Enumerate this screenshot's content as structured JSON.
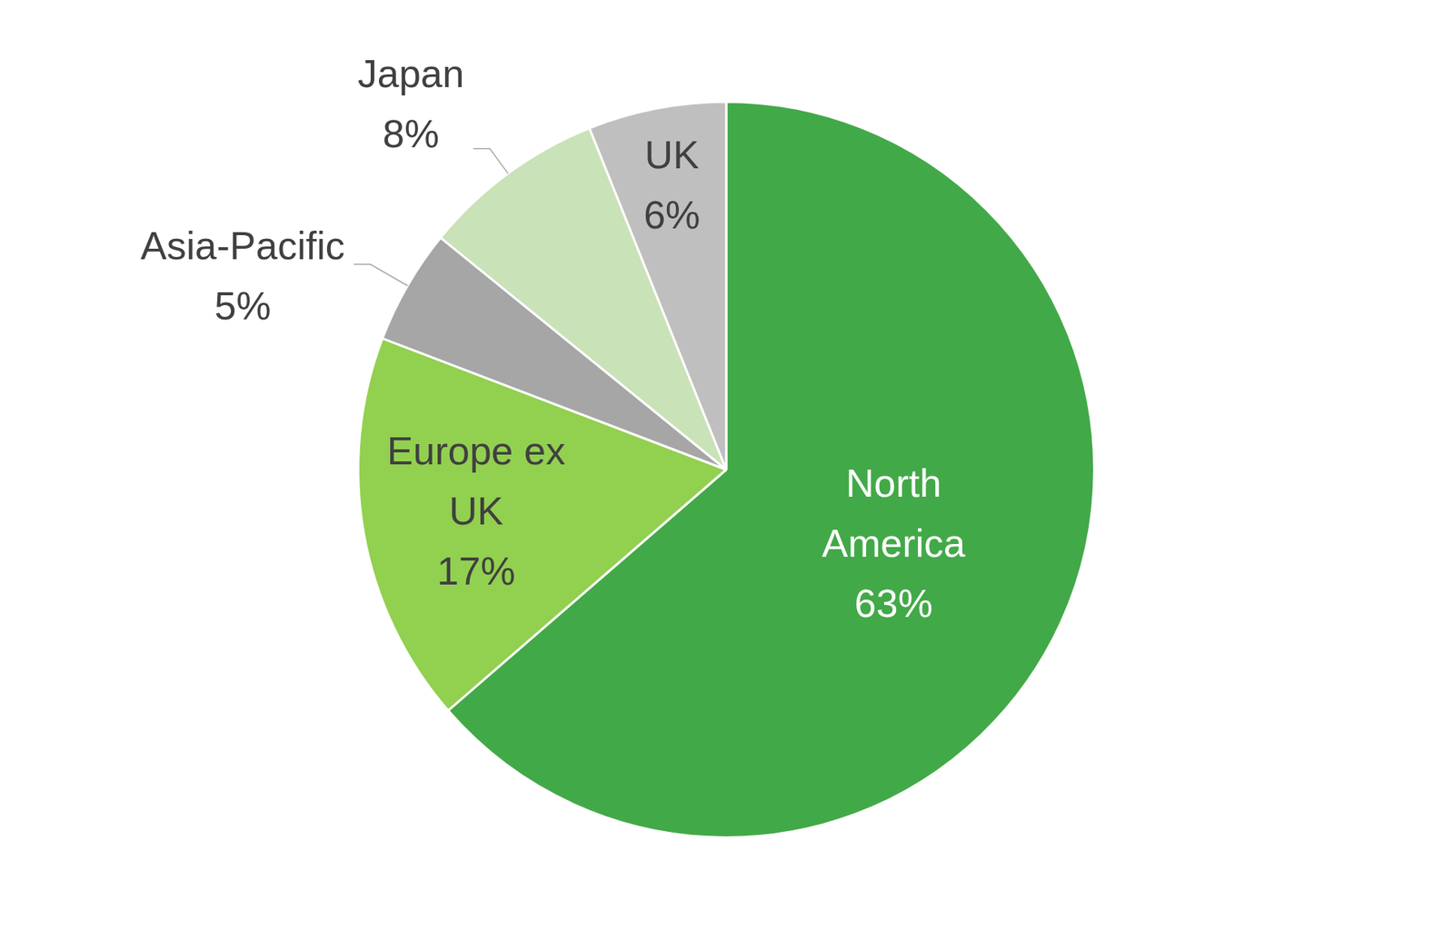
{
  "chart_data": {
    "type": "pie",
    "categories": [
      "North America",
      "Europe ex UK",
      "Asia-Pacific",
      "Japan",
      "UK"
    ],
    "values": [
      63,
      17,
      5,
      8,
      6
    ],
    "value_labels": [
      "63%",
      "17%",
      "5%",
      "8%",
      "6%"
    ],
    "colors": [
      "#42a948",
      "#92d050",
      "#a6a6a6",
      "#c9e2b8",
      "#bfbfbf"
    ],
    "data_labels": true
  }
}
